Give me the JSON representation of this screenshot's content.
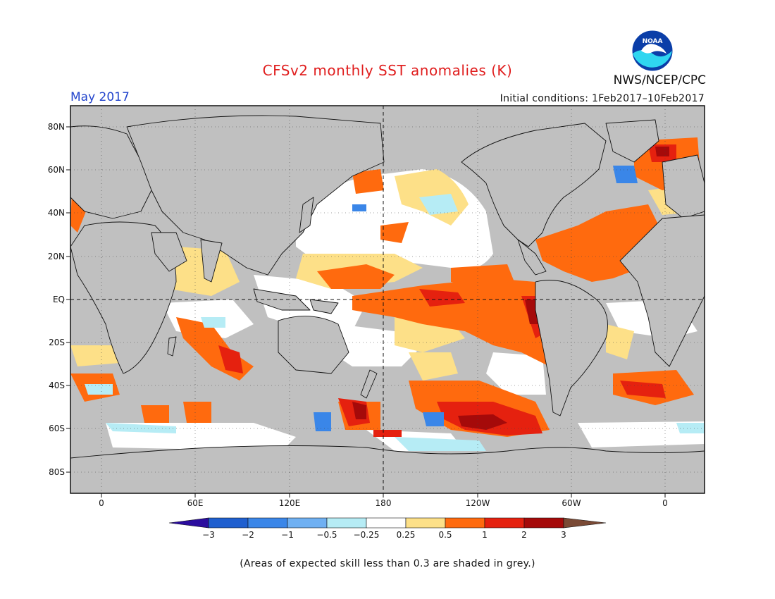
{
  "header": {
    "title": "CFSv2 monthly SST anomalies (K)",
    "month": "May 2017",
    "agency": "NWS/NCEP/CPC",
    "initial_conditions": "Initial conditions: 1Feb2017–10Feb2017",
    "logo_text": "NOAA"
  },
  "map": {
    "lat_labels": [
      "80N",
      "60N",
      "40N",
      "20N",
      "EQ",
      "20S",
      "40S",
      "60S",
      "80S"
    ],
    "lon_labels": [
      "0",
      "60E",
      "120E",
      "180",
      "120W",
      "60W",
      "0"
    ],
    "land_color": "#c0c0c0",
    "mask_color": "#c0c0c0"
  },
  "colorbar": {
    "labels": [
      "−3",
      "−2",
      "−1",
      "−0.5",
      "−0.25",
      "0.25",
      "0.5",
      "1",
      "2",
      "3"
    ],
    "colors": [
      "#2b0d9e",
      "#1f5fcf",
      "#3a86e8",
      "#6fb0f2",
      "#b6ecf5",
      "#ffffff",
      "#fde088",
      "#ff6a0e",
      "#e5210f",
      "#a50a0a",
      "#7a4a35"
    ]
  },
  "footer": {
    "note": "(Areas of expected skill less than 0.3 are shaded in grey.)"
  }
}
